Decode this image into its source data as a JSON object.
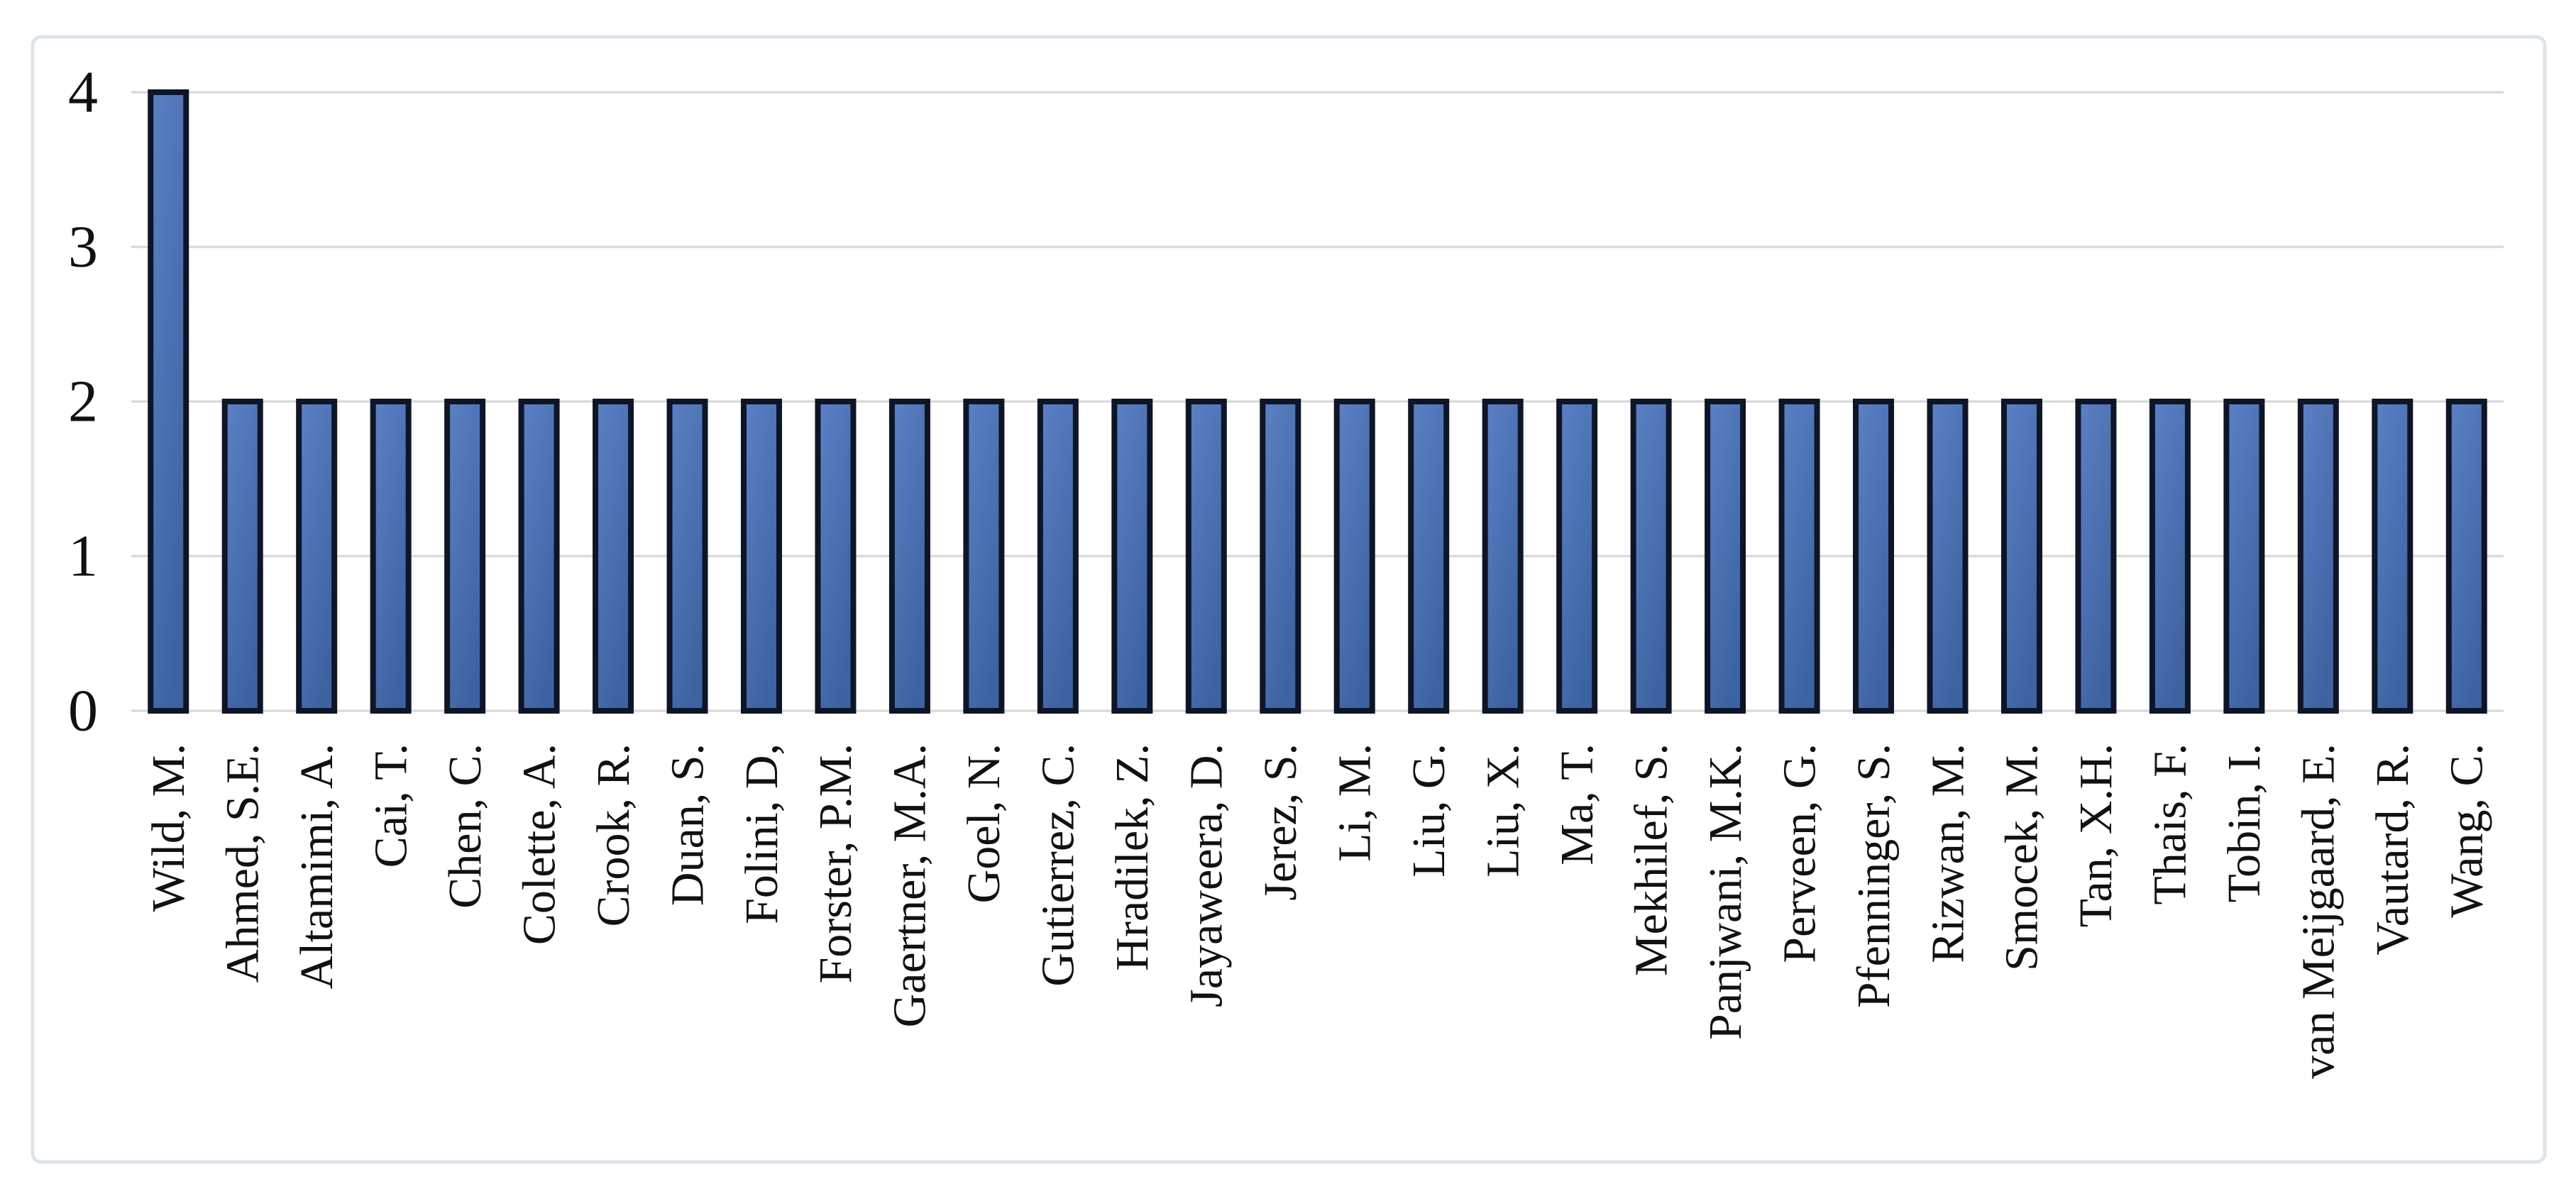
{
  "figure": {
    "background": "#ffffff",
    "frame_color": "#dde4eb"
  },
  "chart_data": {
    "type": "bar",
    "title": "",
    "xlabel": "",
    "ylabel": "",
    "categories": [
      "Wild, M.",
      "Ahmed, S.E.",
      "Altamimi, A.",
      "Cai, T.",
      "Chen, C.",
      "Colette, A.",
      "Crook, R.",
      "Duan, S.",
      "Folini, D,",
      "Forster, P.M.",
      "Gaertner, M.A.",
      "Goel, N.",
      "Gutierrez, C.",
      "Hradilek, Z.",
      "Jayaweera, D.",
      "Jerez, S.",
      "Li, M.",
      "Liu, G.",
      "Liu, X.",
      "Ma, T.",
      "Mekhilef, S.",
      "Panjwani, M.K.",
      "Perveen, G.",
      "Pfenninger, S.",
      "Rizwan, M.",
      "Smocek, M.",
      "Tan, X.H.",
      "Thais, F.",
      "Tobin, I.",
      "van Meijgaard, E.",
      "Vautard, R.",
      "Wang, C."
    ],
    "values": [
      4,
      2,
      2,
      2,
      2,
      2,
      2,
      2,
      2,
      2,
      2,
      2,
      2,
      2,
      2,
      2,
      2,
      2,
      2,
      2,
      2,
      2,
      2,
      2,
      2,
      2,
      2,
      2,
      2,
      2,
      2,
      2
    ],
    "ylim": [
      0,
      4
    ],
    "yticks": [
      0,
      1,
      2,
      3,
      4
    ],
    "grid": true,
    "legend": false,
    "styles": {
      "bar_fill_light": "#5b81c4",
      "bar_fill_mid": "#4e74b6",
      "bar_fill_dark": "#3e63a2",
      "bar_border": "#0e1526",
      "gridline": "#d6d6d6",
      "tick_text": "#111111",
      "label_text": "#111111"
    }
  }
}
